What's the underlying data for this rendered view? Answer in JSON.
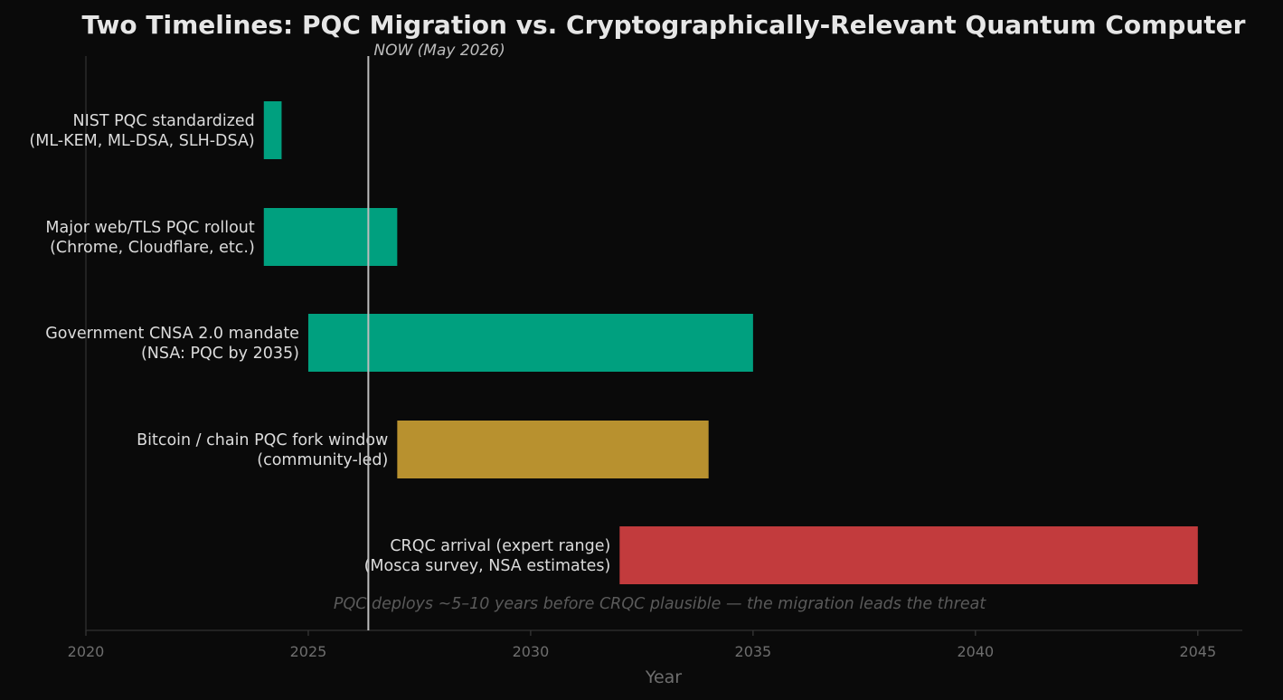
{
  "chart_data": {
    "type": "bar",
    "orientation": "horizontal",
    "title": "Two Timelines: PQC Migration vs. Cryptographically-Relevant Quantum Computer",
    "xlabel": "Year",
    "ylabel": "",
    "xlim": [
      2020,
      2046
    ],
    "xticks": [
      2020,
      2025,
      2030,
      2035,
      2040,
      2045
    ],
    "grid": false,
    "bars": [
      {
        "label_line1": "NIST PQC standardized",
        "label_line2": "(ML-KEM, ML-DSA, SLH-DSA)",
        "start": 2024.0,
        "end": 2024.4,
        "color": "#00a07f"
      },
      {
        "label_line1": "Major web/TLS PQC rollout",
        "label_line2": "(Chrome, Cloudflare, etc.)",
        "start": 2024.0,
        "end": 2027.0,
        "color": "#00a07f"
      },
      {
        "label_line1": "Government CNSA 2.0 mandate",
        "label_line2": "(NSA: PQC by 2035)",
        "start": 2025.0,
        "end": 2035.0,
        "color": "#00a07f"
      },
      {
        "label_line1": "Bitcoin / chain PQC fork window",
        "label_line2": "(community-led)",
        "start": 2027.0,
        "end": 2034.0,
        "color": "#b8912f"
      },
      {
        "label_line1": "CRQC arrival (expert range)",
        "label_line2": "(Mosca survey, NSA estimates)",
        "start": 2032.0,
        "end": 2045.0,
        "color": "#c23b3d"
      }
    ],
    "now_line": {
      "x": 2026.35,
      "label": "NOW (May 2026)"
    },
    "annotation": {
      "text": "PQC deploys ~5–10 years before CRQC plausible — the migration leads the threat",
      "x": 2032.9,
      "y_position": "below last bar"
    }
  }
}
